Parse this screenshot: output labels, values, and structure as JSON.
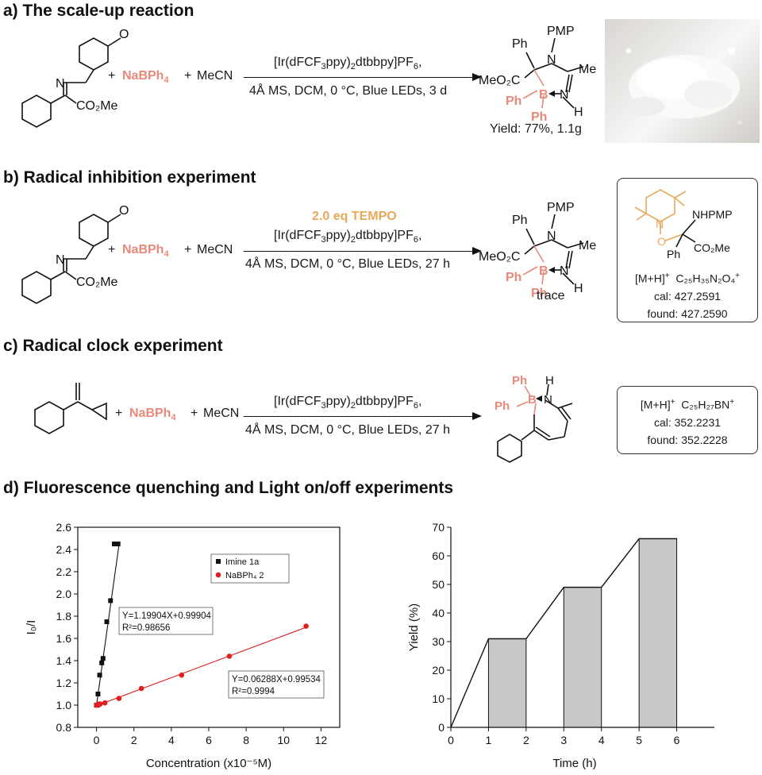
{
  "sections": {
    "a": {
      "title": "a) The scale-up reaction",
      "plus1": "+",
      "reagent": "NaBPh",
      "reagent_sub": "4",
      "plus2": "+",
      "solvent": "MeCN",
      "catalyst": "[Ir(dFCF",
      "catalyst_sub1": "3",
      "catalyst_mid": "ppy)",
      "catalyst_sub2": "2",
      "catalyst_end": "dtbbpy]PF",
      "catalyst_sub3": "6",
      "catalyst_comma": ",",
      "conditions": "4Å MS, DCM, 0 °C, Blue LEDs, 3 d",
      "yield": "Yield: 77%, 1.1g"
    },
    "b": {
      "title": "b) Radical inhibition experiment",
      "additive": "2.0 eq TEMPO",
      "plus1": "+",
      "reagent": "NaBPh",
      "reagent_sub": "4",
      "plus2": "+",
      "solvent": "MeCN",
      "catalyst": "[Ir(dFCF",
      "catalyst_sub1": "3",
      "catalyst_mid": "ppy)",
      "catalyst_sub2": "2",
      "catalyst_end": "dtbbpy]PF",
      "catalyst_sub3": "6",
      "catalyst_comma": ",",
      "conditions": "4Å MS, DCM, 0 °C, Blue LEDs, 27 h",
      "result": "trace",
      "box": {
        "label_top": "NHPMP",
        "label_ph": "Ph",
        "label_co2me": "CO₂Me",
        "label_n": "N",
        "label_o1": "O",
        "label_o2": "O",
        "ion": "[M+H]",
        "ion_sup": "+",
        "formula": "C₂₅H₃₅N₂O₄",
        "formula_sup": "+",
        "cal": "cal: 427.2591",
        "found": "found: 427.2590"
      }
    },
    "c": {
      "title": "c) Radical clock experiment",
      "plus1": "+",
      "reagent": "NaBPh",
      "reagent_sub": "4",
      "plus2": "+",
      "solvent": "MeCN",
      "catalyst": "[Ir(dFCF",
      "catalyst_sub1": "3",
      "catalyst_mid": "ppy)",
      "catalyst_sub2": "2",
      "catalyst_end": "dtbbpy]PF",
      "catalyst_sub3": "6",
      "catalyst_comma": ",",
      "conditions": "4Å MS, DCM, 0 °C, Blue LEDs, 27 h",
      "box": {
        "ion": "[M+H]",
        "ion_sup": "+",
        "formula": "C₂₅H₂₇BN",
        "formula_sup": "+",
        "cal": "cal: 352.2231",
        "found": "found: 352.2228"
      }
    },
    "d": {
      "title": "d) Fluorescence quenching and Light on/off experiments"
    }
  },
  "molecule_labels": {
    "ome": "O",
    "n": "N",
    "co2me": "CO₂Me",
    "ph": "Ph",
    "pmp": "PMP",
    "me": "Me",
    "meo2c": "MeO₂C",
    "b": "B",
    "h": "H",
    "nprod": "N"
  },
  "colors": {
    "accent_salmon": "#e8897a",
    "tempo_orange": "#e8a95a",
    "series_black": "#111111",
    "series_red": "#e02020",
    "bar_gray": "#c8c8c8"
  },
  "chart_data": [
    {
      "type": "scatter",
      "title": "",
      "xlabel": "Concentration (x10⁻⁵M)",
      "ylabel": "I₀/I",
      "xlim": [
        -1,
        13
      ],
      "ylim": [
        0.8,
        2.6
      ],
      "xticks": [
        0,
        2,
        4,
        6,
        8,
        10,
        12
      ],
      "yticks": [
        0.8,
        1.0,
        1.2,
        1.4,
        1.6,
        1.8,
        2.0,
        2.2,
        2.4,
        2.6
      ],
      "legend": "top-middle",
      "series": [
        {
          "name": "Imine 1a",
          "color": "#111111",
          "marker": "square",
          "x": [
            0.0,
            0.08,
            0.17,
            0.28,
            0.35,
            0.55,
            0.75,
            0.95,
            1.15
          ],
          "y": [
            1.0,
            1.1,
            1.27,
            1.38,
            1.42,
            1.75,
            1.94,
            2.45,
            2.45
          ],
          "fit_label": "Y=1.19904X+0.99904",
          "fit_r2": "R²=0.98656",
          "slope": 1.19904,
          "intercept": 0.99904
        },
        {
          "name": "NaBPh₄ 2",
          "color": "#e02020",
          "marker": "circle",
          "x": [
            0.0,
            0.05,
            0.1,
            0.15,
            0.2,
            0.45,
            1.2,
            2.4,
            4.55,
            7.1,
            11.2
          ],
          "y": [
            1.0,
            1.0,
            1.0,
            1.01,
            1.01,
            1.02,
            1.06,
            1.15,
            1.27,
            1.44,
            1.71
          ],
          "fit_label": "Y=0.06288X+0.99534",
          "fit_r2": "R²=0.9994",
          "slope": 0.06288,
          "intercept": 0.99534
        }
      ]
    },
    {
      "type": "line",
      "title": "",
      "xlabel": "Time (h)",
      "ylabel": "Yield (%)",
      "xlim": [
        0,
        7
      ],
      "ylim": [
        0,
        70
      ],
      "xticks": [
        0,
        1,
        2,
        3,
        4,
        5,
        6
      ],
      "yticks": [
        0,
        10,
        20,
        30,
        40,
        50,
        60,
        70
      ],
      "x": [
        0,
        1,
        2,
        3,
        4,
        5,
        6
      ],
      "y": [
        0,
        31,
        31,
        49,
        49,
        66,
        66
      ],
      "shaded_intervals": [
        [
          1,
          2
        ],
        [
          3,
          4
        ],
        [
          5,
          6
        ]
      ]
    }
  ]
}
